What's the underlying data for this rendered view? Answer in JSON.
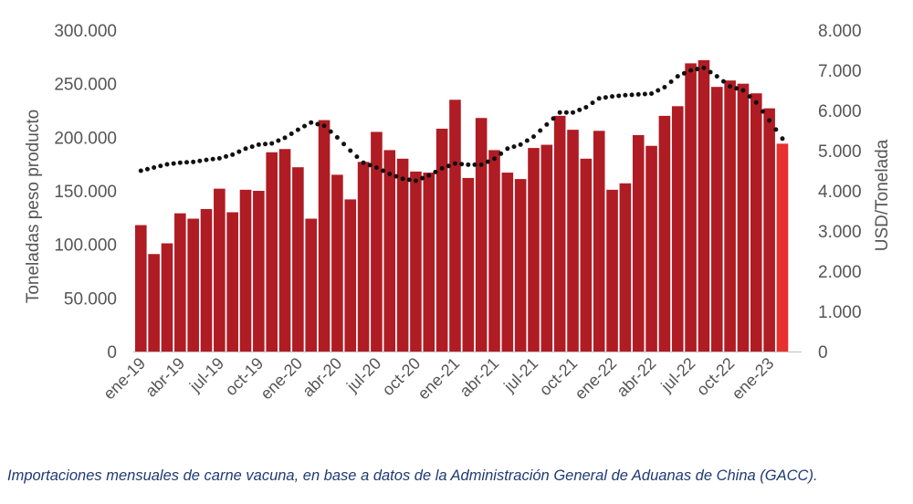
{
  "caption": "Importaciones mensuales de carne vacuna, en base a datos de la Administración General de Aduanas de China (GACC).",
  "chart_data": {
    "type": "bar",
    "ylabel": "Toneladas peso producto",
    "y2label": "USD/Tonelada",
    "ylim": [
      0,
      300000
    ],
    "y2lim": [
      0,
      8000
    ],
    "yticks": [
      "0",
      "50.000",
      "100.000",
      "150.000",
      "200.000",
      "250.000",
      "300.000"
    ],
    "y2ticks": [
      "0",
      "1.000",
      "2.000",
      "3.000",
      "4.000",
      "5.000",
      "6.000",
      "7.000",
      "8.000"
    ],
    "xticks": [
      "ene-19",
      "abr-19",
      "jul-19",
      "oct-19",
      "ene-20",
      "abr-20",
      "jul-20",
      "oct-20",
      "ene-21",
      "abr-21",
      "jul-21",
      "oct-21",
      "ene-22",
      "abr-22",
      "jul-22",
      "oct-22",
      "ene-23"
    ],
    "bar_color": "#b01c24",
    "last_bar_color": "#e8302e",
    "line_color": "#111111",
    "grid": false,
    "legend": "none",
    "series": [
      {
        "type": "bar",
        "axis": "left",
        "values": [
          118000,
          91000,
          101000,
          129000,
          124000,
          133000,
          152000,
          130000,
          151000,
          150000,
          186000,
          189000,
          172000,
          124000,
          216000,
          165000,
          142000,
          177000,
          205000,
          188000,
          180000,
          168000,
          167000,
          208000,
          235000,
          162000,
          218000,
          188000,
          167000,
          161000,
          190000,
          193000,
          220000,
          207000,
          180000,
          206000,
          151000,
          157000,
          202000,
          192000,
          220000,
          229000,
          269000,
          272000,
          247000,
          253000,
          250000,
          241000,
          227000,
          194000
        ]
      },
      {
        "type": "line",
        "axis": "right",
        "style": "dotted",
        "values": [
          4500,
          4580,
          4660,
          4700,
          4720,
          4770,
          4810,
          4900,
          5050,
          5150,
          5180,
          5320,
          5520,
          5700,
          5620,
          5330,
          5000,
          4700,
          4580,
          4420,
          4300,
          4250,
          4380,
          4560,
          4680,
          4650,
          4650,
          4800,
          5050,
          5150,
          5350,
          5650,
          5950,
          5950,
          6080,
          6300,
          6350,
          6380,
          6400,
          6420,
          6580,
          6850,
          7000,
          7060,
          6850,
          6600,
          6500,
          6200,
          5750,
          5300
        ]
      }
    ]
  }
}
